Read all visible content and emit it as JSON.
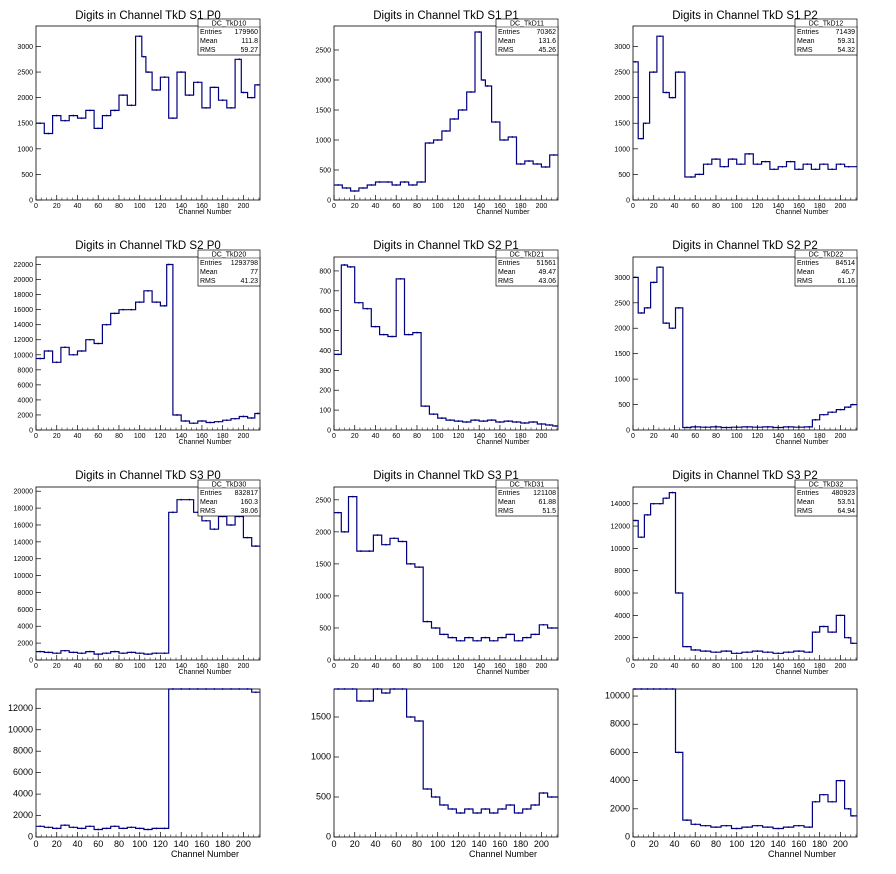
{
  "chart_data": [
    {
      "type": "line",
      "title": "Digits in Channel TkD S1 P0",
      "xlabel": "Channel Number",
      "xlim": [
        0,
        216
      ],
      "ylim": [
        0,
        3400
      ],
      "yticks": [
        0,
        500,
        1000,
        1500,
        2000,
        2500,
        3000
      ],
      "stats": {
        "name": "DC_TkD10",
        "entries_label": "Entries",
        "entries": "179960",
        "mean_label": "Mean",
        "mean": "111.8",
        "rms_label": "RMS",
        "rms": "59.27"
      },
      "x": [
        4,
        12,
        20,
        28,
        36,
        44,
        52,
        60,
        68,
        76,
        84,
        92,
        100,
        104,
        108,
        116,
        124,
        132,
        140,
        148,
        156,
        164,
        172,
        180,
        188,
        196,
        200,
        208,
        214
      ],
      "y": [
        1500,
        1300,
        1650,
        1550,
        1650,
        1600,
        1750,
        1400,
        1650,
        1750,
        2050,
        1850,
        3200,
        2800,
        2500,
        2150,
        2400,
        1600,
        2500,
        2050,
        2300,
        1800,
        2200,
        1950,
        1800,
        2750,
        2100,
        2000,
        2250
      ]
    },
    {
      "type": "line",
      "title": "Digits in Channel TkD S1 P1",
      "xlabel": "Channel Number",
      "xlim": [
        0,
        216
      ],
      "ylim": [
        0,
        2900
      ],
      "yticks": [
        0,
        500,
        1000,
        1500,
        2000,
        2500
      ],
      "stats": {
        "name": "DC_TkD11",
        "entries_label": "Entries",
        "entries": "70362",
        "mean_label": "Mean",
        "mean": "131.6",
        "rms_label": "RMS",
        "rms": "45.26"
      },
      "x": [
        4,
        12,
        20,
        28,
        36,
        44,
        52,
        60,
        68,
        76,
        84,
        92,
        100,
        108,
        116,
        124,
        132,
        140,
        144,
        148,
        156,
        164,
        172,
        180,
        188,
        196,
        204,
        212
      ],
      "y": [
        250,
        200,
        150,
        200,
        250,
        300,
        300,
        250,
        300,
        250,
        300,
        950,
        1000,
        1150,
        1350,
        1500,
        1800,
        2800,
        2000,
        1900,
        1300,
        1000,
        1050,
        600,
        650,
        600,
        550,
        750
      ]
    },
    {
      "type": "line",
      "title": "Digits in Channel TkD S1 P2",
      "xlabel": "Channel Number",
      "xlim": [
        0,
        216
      ],
      "ylim": [
        0,
        3400
      ],
      "yticks": [
        0,
        500,
        1000,
        1500,
        2000,
        2500,
        3000
      ],
      "stats": {
        "name": "DC_TkD12",
        "entries_label": "Entries",
        "entries": "71439",
        "mean_label": "Mean",
        "mean": "59.31",
        "rms_label": "RMS",
        "rms": "54.32"
      },
      "x": [
        2,
        8,
        12,
        20,
        26,
        32,
        38,
        44,
        56,
        64,
        72,
        80,
        88,
        96,
        104,
        112,
        120,
        128,
        136,
        144,
        152,
        160,
        168,
        176,
        184,
        192,
        200,
        208
      ],
      "y": [
        2700,
        1200,
        1500,
        2500,
        3200,
        2100,
        2000,
        2500,
        450,
        500,
        700,
        800,
        650,
        800,
        700,
        900,
        700,
        750,
        600,
        650,
        750,
        600,
        700,
        600,
        700,
        600,
        700,
        650
      ]
    },
    {
      "type": "line",
      "title": "Digits in Channel TkD S2 P0",
      "xlabel": "Channel Number",
      "xlim": [
        0,
        216
      ],
      "ylim": [
        0,
        23000
      ],
      "yticks": [
        0,
        2000,
        4000,
        6000,
        8000,
        10000,
        12000,
        14000,
        16000,
        18000,
        20000,
        22000
      ],
      "stats": {
        "name": "DC_TkD20",
        "entries_label": "Entries",
        "entries": "1293798",
        "mean_label": "Mean",
        "mean": "77",
        "rms_label": "RMS",
        "rms": "41.23"
      },
      "x": [
        4,
        12,
        20,
        28,
        36,
        44,
        52,
        60,
        68,
        76,
        84,
        92,
        100,
        108,
        116,
        124,
        128,
        136,
        144,
        152,
        160,
        168,
        176,
        184,
        192,
        200,
        208,
        214
      ],
      "y": [
        9500,
        10500,
        9000,
        11000,
        10000,
        10500,
        12000,
        11500,
        14000,
        15500,
        16000,
        16000,
        17000,
        18500,
        17000,
        16500,
        22000,
        2000,
        1200,
        900,
        1200,
        1000,
        1100,
        1300,
        1500,
        1800,
        1600,
        2200
      ]
    },
    {
      "type": "line",
      "title": "Digits in Channel TkD S2 P1",
      "xlabel": "Channel Number",
      "xlim": [
        0,
        216
      ],
      "ylim": [
        0,
        870
      ],
      "yticks": [
        0,
        100,
        200,
        300,
        400,
        500,
        600,
        700,
        800
      ],
      "stats": {
        "name": "DC_TkD21",
        "entries_label": "Entries",
        "entries": "51561",
        "mean_label": "Mean",
        "mean": "49.47",
        "rms_label": "RMS",
        "rms": "43.06"
      },
      "x": [
        4,
        10,
        16,
        24,
        32,
        40,
        48,
        56,
        64,
        72,
        80,
        88,
        96,
        104,
        112,
        120,
        128,
        136,
        144,
        152,
        160,
        168,
        176,
        184,
        192,
        200,
        208,
        214
      ],
      "y": [
        380,
        830,
        820,
        640,
        610,
        520,
        480,
        470,
        760,
        480,
        490,
        120,
        80,
        60,
        50,
        45,
        40,
        50,
        45,
        50,
        40,
        45,
        40,
        35,
        40,
        30,
        25,
        20
      ]
    },
    {
      "type": "line",
      "title": "Digits in Channel TkD S2 P2",
      "xlabel": "Channel Number",
      "xlim": [
        0,
        216
      ],
      "ylim": [
        0,
        3400
      ],
      "yticks": [
        0,
        500,
        1000,
        1500,
        2000,
        2500,
        3000
      ],
      "stats": {
        "name": "DC_TkD22",
        "entries_label": "Entries",
        "entries": "84514",
        "mean_label": "Mean",
        "mean": "46.7",
        "rms_label": "RMS",
        "rms": "61.16"
      },
      "x": [
        2,
        8,
        14,
        20,
        26,
        32,
        38,
        44,
        52,
        60,
        70,
        80,
        90,
        100,
        110,
        120,
        130,
        140,
        150,
        160,
        170,
        176,
        184,
        192,
        200,
        208,
        212
      ],
      "y": [
        3000,
        2300,
        2400,
        2900,
        3200,
        2100,
        2000,
        2400,
        50,
        60,
        55,
        60,
        50,
        55,
        60,
        55,
        60,
        50,
        60,
        55,
        60,
        200,
        300,
        350,
        400,
        450,
        500
      ]
    },
    {
      "type": "line",
      "title": "Digits in Channel TkD S3 P0",
      "xlabel": "Channel Number",
      "xlim": [
        0,
        216
      ],
      "ylim": [
        0,
        20500
      ],
      "yticks": [
        0,
        2000,
        4000,
        6000,
        8000,
        10000,
        12000,
        14000,
        16000,
        18000,
        20000
      ],
      "stats": {
        "name": "DC_TkD30",
        "entries_label": "Entries",
        "entries": "832817",
        "mean_label": "Mean",
        "mean": "160.3",
        "rms_label": "RMS",
        "rms": "38.06"
      },
      "x": [
        4,
        12,
        20,
        28,
        36,
        44,
        52,
        60,
        68,
        76,
        84,
        92,
        100,
        108,
        116,
        124,
        132,
        140,
        148,
        156,
        164,
        172,
        180,
        188,
        196,
        204,
        212
      ],
      "y": [
        1000,
        900,
        800,
        1100,
        900,
        800,
        1000,
        700,
        800,
        1000,
        800,
        900,
        800,
        700,
        800,
        800,
        17500,
        19000,
        19000,
        17500,
        16500,
        15500,
        17000,
        16000,
        17000,
        14500,
        13500
      ]
    },
    {
      "type": "line",
      "title": "Digits in Channel TkD S3 P1",
      "xlabel": "Channel Number",
      "xlim": [
        0,
        216
      ],
      "ylim": [
        0,
        2700
      ],
      "yticks": [
        0,
        500,
        1000,
        1500,
        2000,
        2500
      ],
      "stats": {
        "name": "DC_TkD31",
        "entries_label": "Entries",
        "entries": "121108",
        "mean_label": "Mean",
        "mean": "61.88",
        "rms_label": "RMS",
        "rms": "51.5"
      },
      "x": [
        4,
        10,
        18,
        26,
        34,
        42,
        50,
        58,
        66,
        74,
        82,
        90,
        98,
        106,
        114,
        122,
        130,
        138,
        146,
        154,
        162,
        170,
        178,
        186,
        194,
        202,
        210
      ],
      "y": [
        2300,
        2000,
        2550,
        1700,
        1700,
        1950,
        1800,
        1900,
        1850,
        1500,
        1450,
        600,
        500,
        400,
        350,
        300,
        350,
        300,
        350,
        300,
        350,
        400,
        300,
        350,
        400,
        550,
        500
      ]
    },
    {
      "type": "line",
      "title": "Digits in Channel TkD S3 P2",
      "xlabel": "Channel Number",
      "xlim": [
        0,
        216
      ],
      "ylim": [
        0,
        15500
      ],
      "yticks": [
        0,
        2000,
        4000,
        6000,
        8000,
        10000,
        12000,
        14000
      ],
      "stats": {
        "name": "DC_TkD32",
        "entries_label": "Entries",
        "entries": "480923",
        "mean_label": "Mean",
        "mean": "53.51",
        "rms_label": "RMS",
        "rms": "64.94"
      },
      "x": [
        2,
        8,
        14,
        20,
        26,
        32,
        38,
        44,
        52,
        60,
        70,
        80,
        90,
        100,
        110,
        120,
        130,
        140,
        150,
        160,
        170,
        176,
        184,
        192,
        200,
        208,
        212
      ],
      "y": [
        12500,
        11000,
        13000,
        14000,
        14000,
        14500,
        15000,
        6000,
        1200,
        900,
        800,
        700,
        800,
        600,
        700,
        800,
        700,
        600,
        700,
        800,
        700,
        2500,
        3000,
        2500,
        4000,
        2000,
        1500
      ]
    },
    {
      "type": "line",
      "title": "",
      "xlabel": "Channel Number",
      "xlim": [
        0,
        216
      ],
      "ylim": [
        0,
        13800
      ],
      "yticks": [
        0,
        2000,
        4000,
        6000,
        8000,
        10000,
        12000
      ],
      "x": [
        4,
        12,
        20,
        28,
        36,
        44,
        52,
        60,
        68,
        76,
        84,
        92,
        100,
        108,
        116,
        124,
        132,
        140,
        148,
        156,
        164,
        172,
        180,
        188,
        196,
        204,
        212
      ],
      "y": [
        1000,
        900,
        800,
        1100,
        900,
        800,
        1000,
        700,
        800,
        1000,
        800,
        900,
        800,
        700,
        800,
        800,
        13800,
        13800,
        13800,
        13800,
        13800,
        13800,
        13800,
        13800,
        13800,
        13800,
        13500
      ]
    },
    {
      "type": "line",
      "title": "",
      "xlabel": "Channel Number",
      "xlim": [
        0,
        216
      ],
      "ylim": [
        0,
        1850
      ],
      "yticks": [
        0,
        500,
        1000,
        1500
      ],
      "x": [
        4,
        10,
        18,
        26,
        34,
        42,
        50,
        58,
        66,
        74,
        82,
        90,
        98,
        106,
        114,
        122,
        130,
        138,
        146,
        154,
        162,
        170,
        178,
        186,
        194,
        202,
        210
      ],
      "y": [
        1850,
        1850,
        1850,
        1700,
        1700,
        1850,
        1800,
        1850,
        1850,
        1500,
        1450,
        600,
        500,
        400,
        350,
        300,
        350,
        300,
        350,
        300,
        350,
        400,
        300,
        350,
        400,
        550,
        500
      ]
    },
    {
      "type": "line",
      "title": "",
      "xlabel": "Channel Number",
      "xlim": [
        0,
        216
      ],
      "ylim": [
        0,
        10500
      ],
      "yticks": [
        0,
        2000,
        4000,
        6000,
        8000,
        10000
      ],
      "x": [
        2,
        8,
        14,
        20,
        26,
        32,
        38,
        44,
        52,
        60,
        70,
        80,
        90,
        100,
        110,
        120,
        130,
        140,
        150,
        160,
        170,
        176,
        184,
        192,
        200,
        208,
        212
      ],
      "y": [
        10500,
        10500,
        10500,
        10500,
        10500,
        10500,
        10500,
        6000,
        1200,
        900,
        800,
        700,
        800,
        600,
        700,
        800,
        700,
        600,
        700,
        800,
        700,
        2500,
        3000,
        2500,
        4000,
        2000,
        1500
      ]
    }
  ],
  "colors": {
    "line": "#000080",
    "axis": "#000000",
    "background": "#ffffff"
  }
}
